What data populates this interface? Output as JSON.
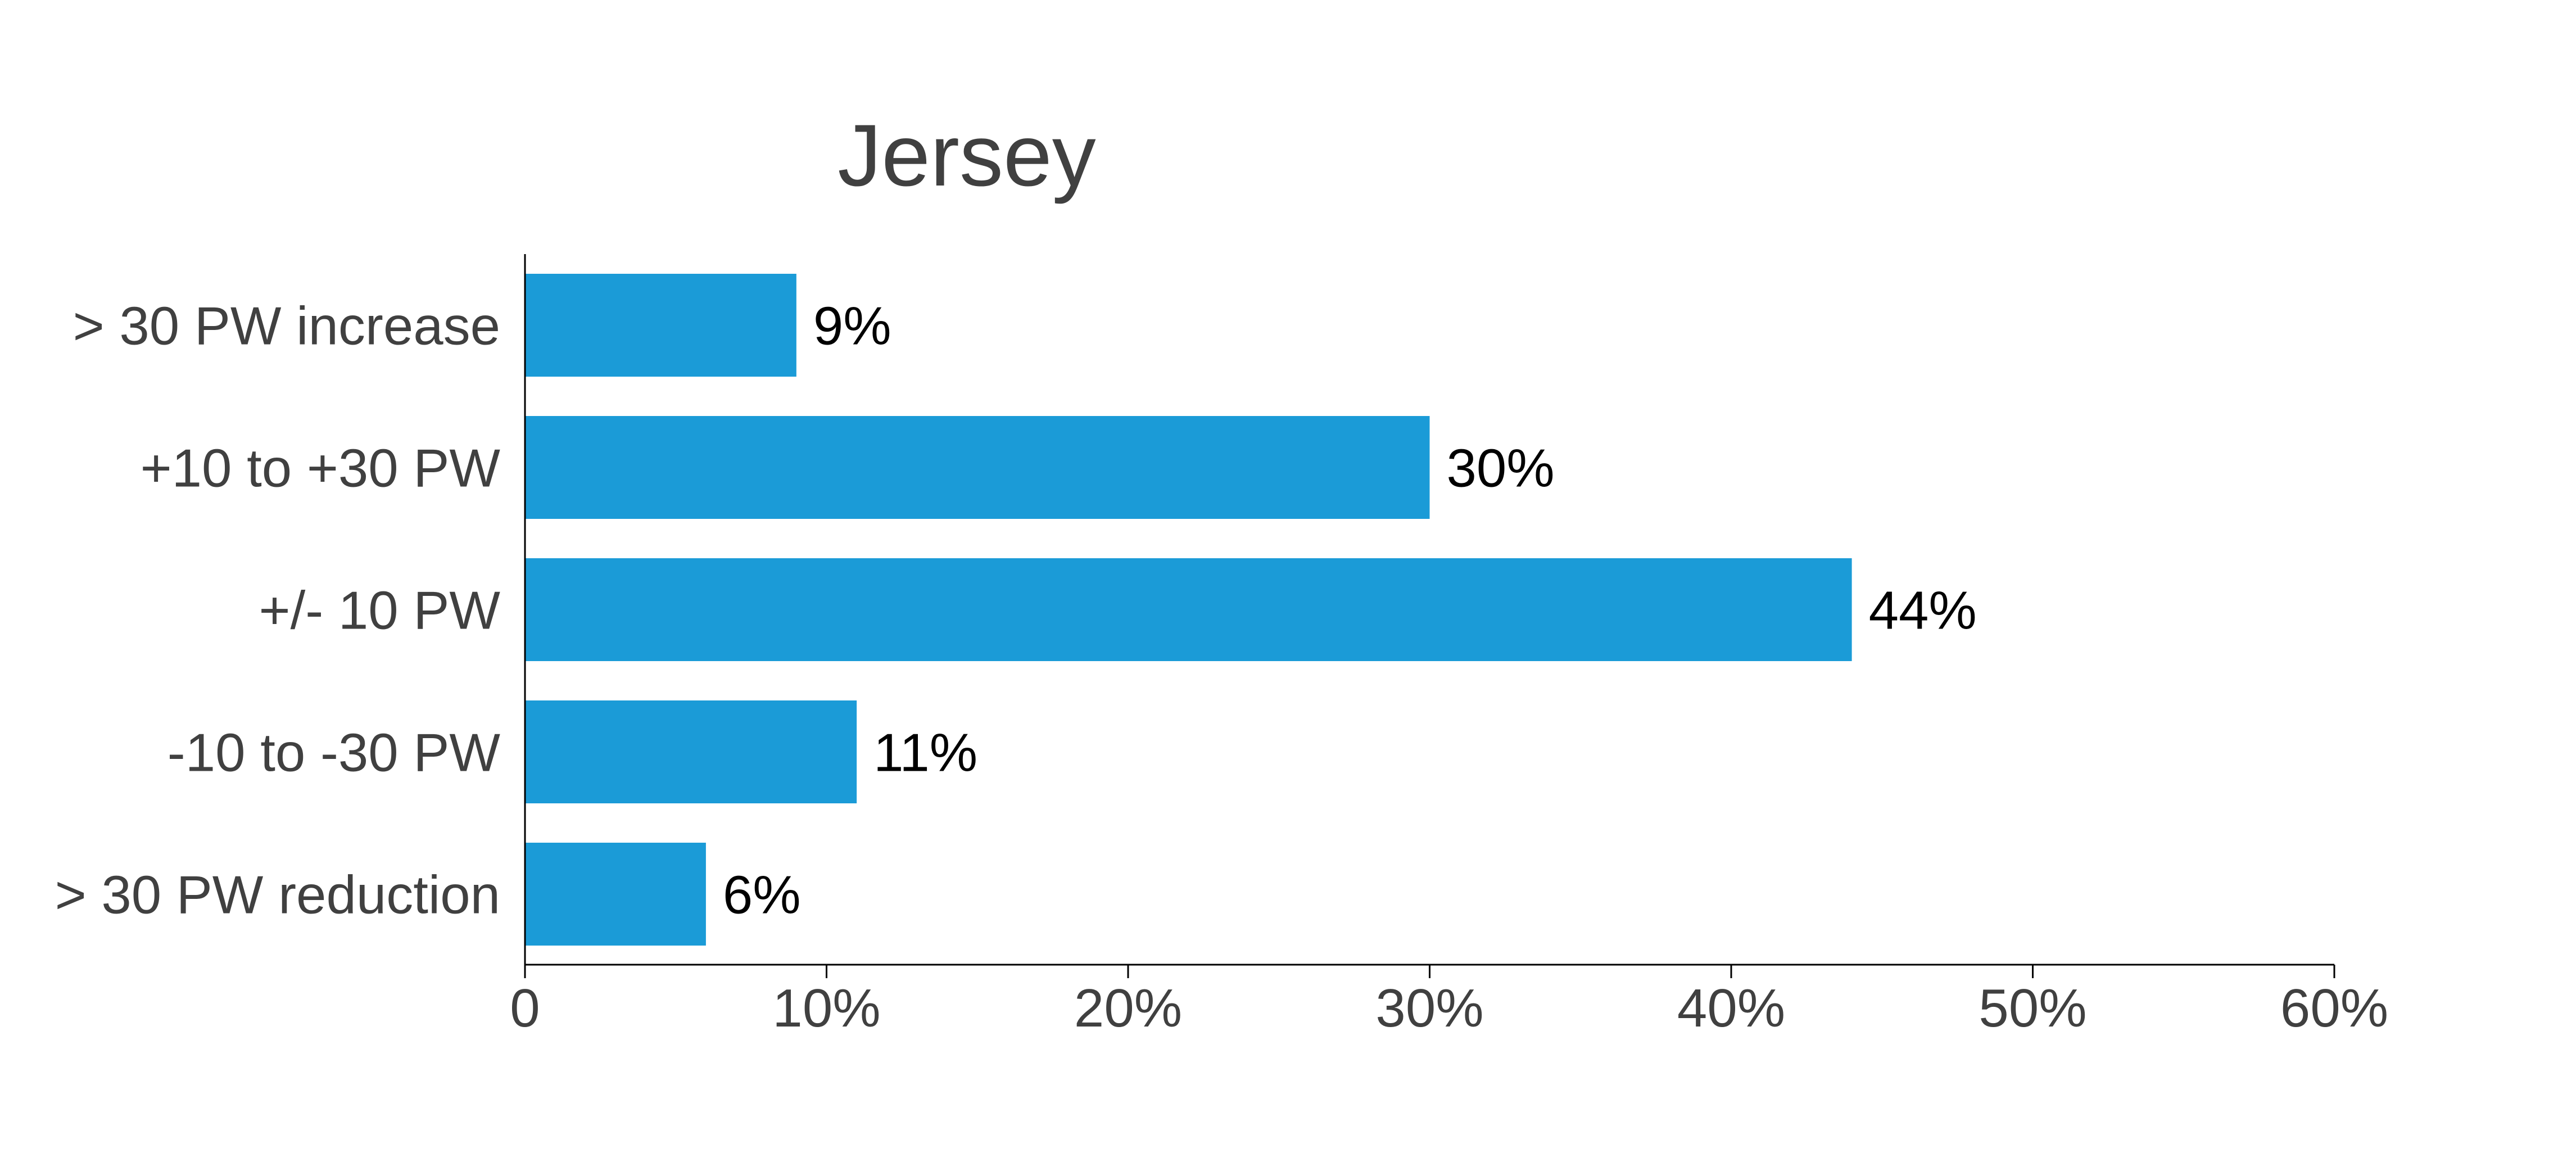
{
  "chart_data": {
    "type": "bar",
    "orientation": "horizontal",
    "title": "Jersey",
    "categories": [
      "> 30 PW increase",
      "+10 to +30 PW",
      "+/- 10 PW",
      "-10 to -30 PW",
      "> 30 PW reduction"
    ],
    "values": [
      9,
      30,
      44,
      11,
      6
    ],
    "data_labels": [
      "9%",
      "30%",
      "44%",
      "11%",
      "6%"
    ],
    "xlim": [
      0,
      60
    ],
    "x_ticks": [
      0,
      10,
      20,
      30,
      40,
      50,
      60
    ],
    "x_tick_labels": [
      "0",
      "10%",
      "20%",
      "30%",
      "40%",
      "50%",
      "60%"
    ],
    "xlabel": "",
    "ylabel": "",
    "grid": false,
    "legend": "none",
    "bar_color": "#1B9BD7",
    "axis_color": "#000000",
    "text_color": "#404040"
  }
}
